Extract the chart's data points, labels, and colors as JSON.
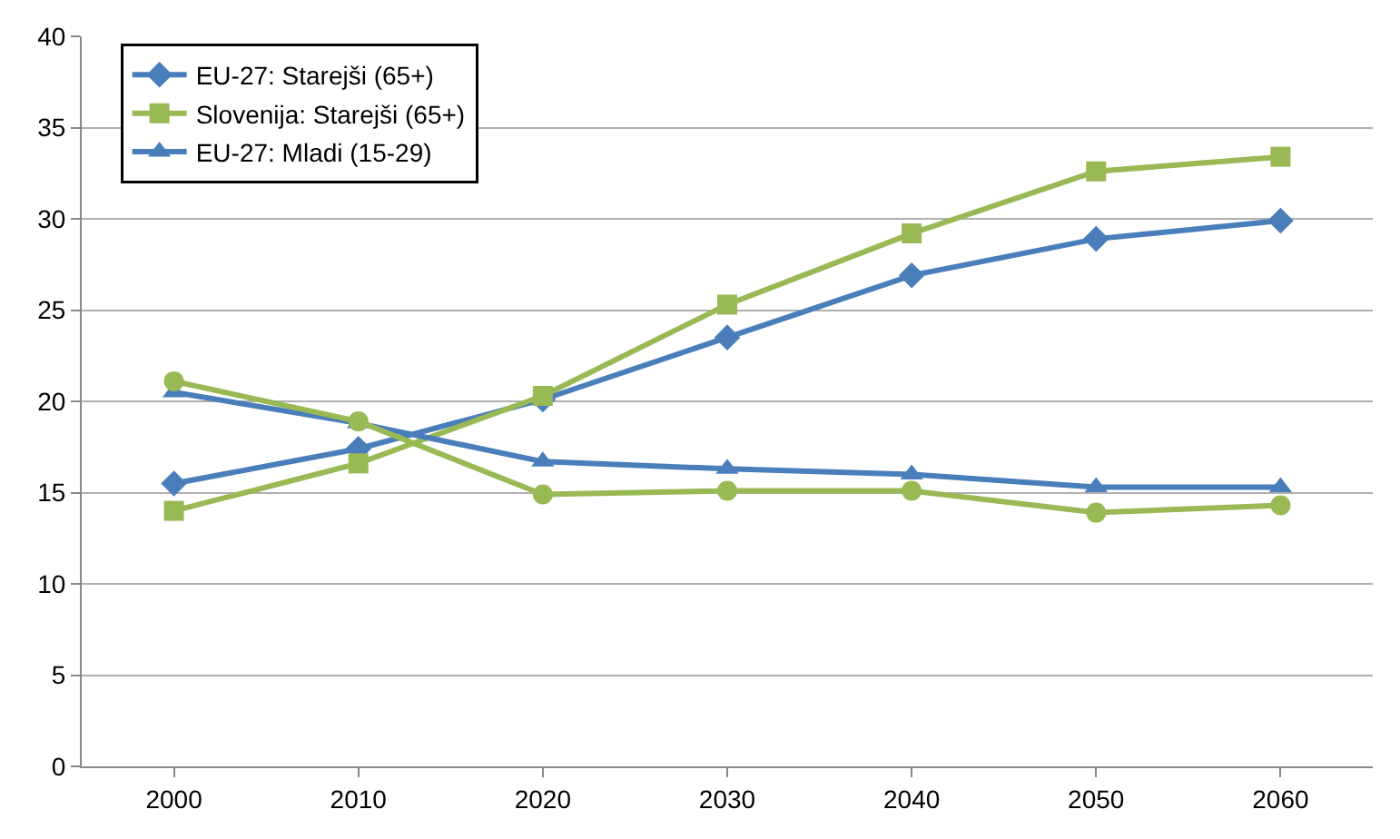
{
  "chart_data": {
    "type": "line",
    "categories": [
      "2000",
      "2010",
      "2020",
      "2030",
      "2040",
      "2050",
      "2060"
    ],
    "ylim": [
      0,
      40
    ],
    "yticks": [
      0,
      5,
      10,
      15,
      20,
      25,
      30,
      35,
      40
    ],
    "grid": "y",
    "legend": "top left",
    "line_style": "solid",
    "series": [
      {
        "name": "EU-27: Starejši (65+)",
        "color": "#4a7ebb",
        "marker": "diamond",
        "values": [
          15.5,
          17.4,
          20.1,
          23.5,
          26.9,
          28.9,
          29.9
        ]
      },
      {
        "name": "Slovenija: Starejši (65+)",
        "color": "#98b954",
        "marker": "square",
        "values": [
          14.0,
          16.6,
          20.3,
          25.3,
          29.2,
          32.6,
          33.4
        ]
      },
      {
        "name": "EU-27: Mladi (15-29)",
        "color": "#4a7ebb",
        "marker": "triangle",
        "values": [
          20.5,
          18.8,
          16.7,
          16.3,
          16.0,
          15.3,
          15.3
        ]
      },
      {
        "color": "#98b954",
        "marker": "circle",
        "values": [
          21.1,
          18.9,
          14.9,
          15.1,
          15.1,
          13.9,
          14.3
        ]
      }
    ]
  }
}
